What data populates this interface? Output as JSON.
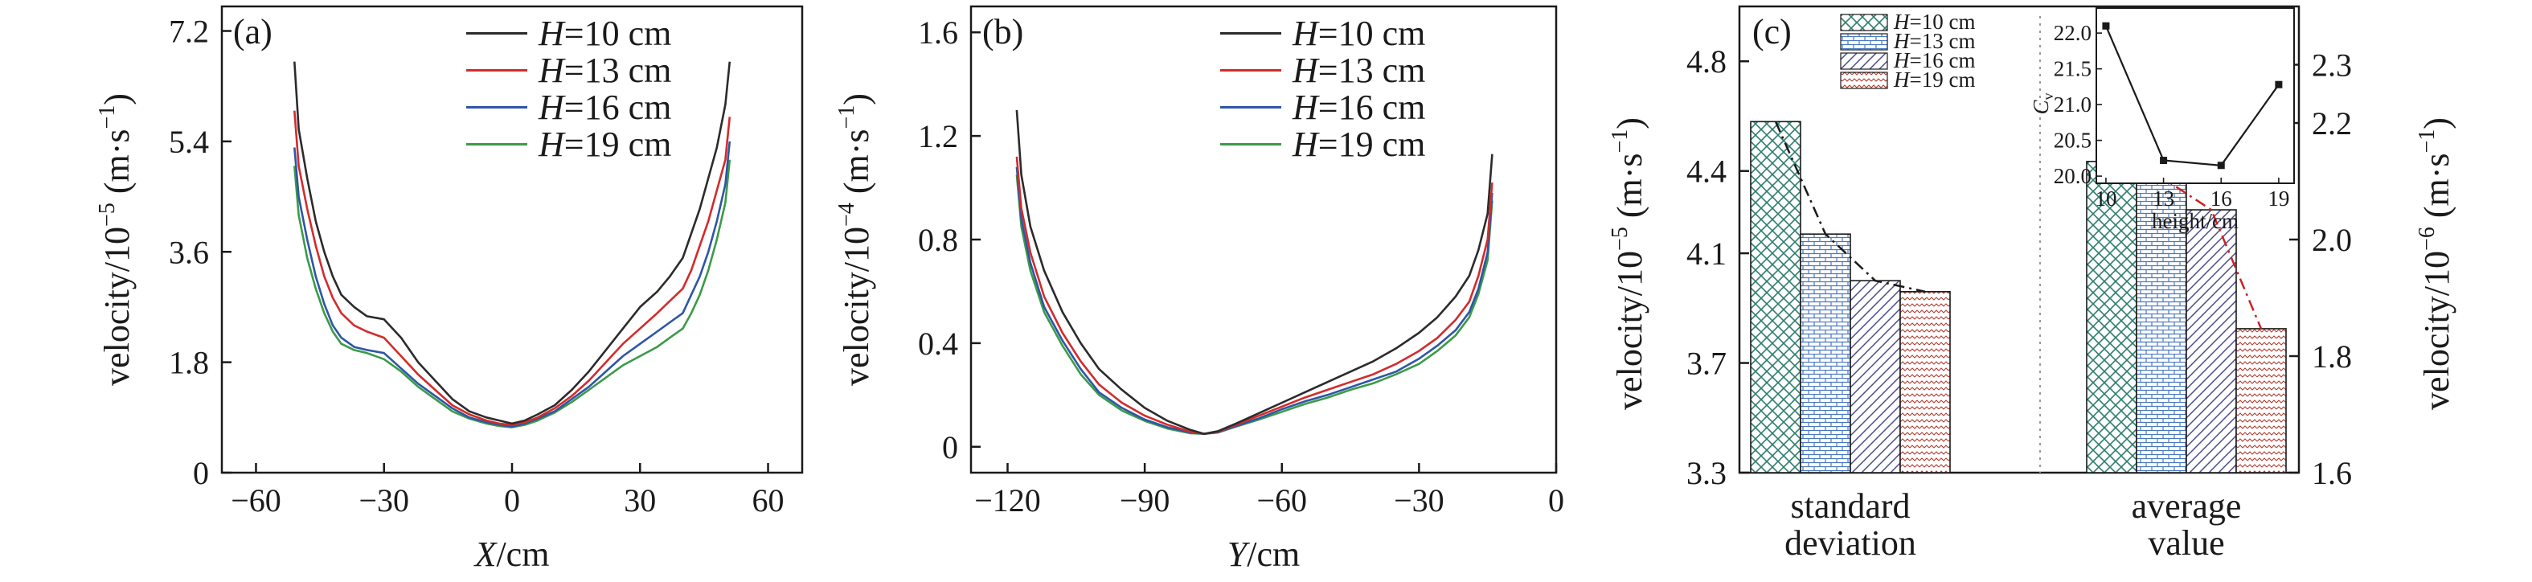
{
  "chart_data": [
    {
      "panel": "(a)",
      "type": "line",
      "xlabel_var": "X",
      "xlabel_unit": "/cm",
      "ylabel": "velocity/10",
      "ylabel_exp": "−5",
      "ylabel_unit": " (m·s",
      "ylabel_unit_exp": "−1",
      "ylabel_close": ")",
      "xlim": [
        -68,
        68
      ],
      "ylim": [
        0,
        7.6
      ],
      "xticks": [
        -60,
        -30,
        0,
        30,
        60
      ],
      "yticks": [
        0,
        1.8,
        3.6,
        5.4,
        7.2
      ],
      "xtick_labels": [
        "−60",
        "−30",
        "0",
        "30",
        "60"
      ],
      "ytick_labels": [
        "0",
        "1.8",
        "3.6",
        "5.4",
        "7.2"
      ],
      "legend": {
        "var": "H",
        "entries": [
          "=10 cm",
          "=13 cm",
          "=16 cm",
          "=19 cm"
        ],
        "placement": "top-right"
      },
      "series": [
        {
          "name": "H=10 cm",
          "color": "#2b2b2b",
          "x": [
            -51,
            -50,
            -48,
            -46,
            -44,
            -42,
            -40,
            -37,
            -34,
            -30,
            -26,
            -22,
            -18,
            -14,
            -10,
            -6,
            -3,
            0,
            3,
            6,
            10,
            14,
            18,
            22,
            26,
            30,
            34,
            37,
            40,
            42,
            44,
            46,
            48,
            50,
            51
          ],
          "y": [
            6.7,
            5.6,
            4.8,
            4.1,
            3.6,
            3.2,
            2.9,
            2.7,
            2.55,
            2.5,
            2.2,
            1.8,
            1.5,
            1.2,
            1.0,
            0.9,
            0.85,
            0.8,
            0.85,
            0.95,
            1.1,
            1.35,
            1.65,
            2.0,
            2.35,
            2.7,
            2.95,
            3.2,
            3.5,
            3.9,
            4.3,
            4.8,
            5.3,
            6.0,
            6.7
          ]
        },
        {
          "name": "H=13 cm",
          "color": "#d42b2b",
          "x": [
            -51,
            -50,
            -48,
            -46,
            -44,
            -42,
            -40,
            -37,
            -34,
            -30,
            -26,
            -22,
            -18,
            -14,
            -10,
            -6,
            -3,
            0,
            3,
            6,
            10,
            14,
            18,
            22,
            26,
            30,
            34,
            37,
            40,
            42,
            44,
            46,
            48,
            50,
            51
          ],
          "y": [
            5.9,
            5.0,
            4.3,
            3.7,
            3.2,
            2.85,
            2.6,
            2.4,
            2.3,
            2.2,
            1.9,
            1.6,
            1.35,
            1.1,
            0.95,
            0.85,
            0.8,
            0.78,
            0.82,
            0.9,
            1.05,
            1.25,
            1.5,
            1.8,
            2.1,
            2.35,
            2.6,
            2.8,
            3.0,
            3.3,
            3.7,
            4.1,
            4.6,
            5.1,
            5.8
          ]
        },
        {
          "name": "H=16 cm",
          "color": "#2e56a6",
          "x": [
            -51,
            -50,
            -48,
            -46,
            -44,
            -42,
            -40,
            -37,
            -34,
            -30,
            -26,
            -22,
            -18,
            -14,
            -10,
            -6,
            -3,
            0,
            3,
            6,
            10,
            14,
            18,
            22,
            26,
            30,
            34,
            37,
            40,
            42,
            44,
            46,
            48,
            50,
            51
          ],
          "y": [
            5.3,
            4.5,
            3.8,
            3.2,
            2.75,
            2.4,
            2.2,
            2.05,
            2.0,
            1.95,
            1.7,
            1.45,
            1.25,
            1.05,
            0.9,
            0.82,
            0.78,
            0.75,
            0.8,
            0.88,
            1.0,
            1.2,
            1.4,
            1.65,
            1.9,
            2.1,
            2.3,
            2.45,
            2.6,
            2.9,
            3.2,
            3.6,
            4.1,
            4.7,
            5.4
          ]
        },
        {
          "name": "H=19 cm",
          "color": "#3c9a48",
          "x": [
            -51,
            -50,
            -48,
            -46,
            -44,
            -42,
            -40,
            -37,
            -34,
            -30,
            -26,
            -22,
            -18,
            -14,
            -10,
            -6,
            -3,
            0,
            3,
            6,
            10,
            14,
            18,
            22,
            26,
            30,
            34,
            37,
            40,
            42,
            44,
            46,
            48,
            50,
            51
          ],
          "y": [
            5.0,
            4.2,
            3.5,
            3.0,
            2.6,
            2.3,
            2.1,
            2.0,
            1.95,
            1.85,
            1.65,
            1.4,
            1.2,
            1.0,
            0.88,
            0.8,
            0.76,
            0.74,
            0.78,
            0.85,
            0.98,
            1.15,
            1.35,
            1.55,
            1.75,
            1.9,
            2.05,
            2.2,
            2.35,
            2.6,
            2.9,
            3.3,
            3.8,
            4.4,
            5.1
          ]
        }
      ]
    },
    {
      "panel": "(b)",
      "type": "line",
      "xlabel_var": "Y",
      "xlabel_unit": "/cm",
      "ylabel": "velocity/10",
      "ylabel_exp": "−4",
      "ylabel_unit": " (m·s",
      "ylabel_unit_exp": "−1",
      "ylabel_close": ")",
      "xlim": [
        -128,
        0
      ],
      "ylim": [
        -0.1,
        1.7
      ],
      "xticks": [
        -120,
        -90,
        -60,
        -30,
        0
      ],
      "yticks": [
        0,
        0.4,
        0.8,
        1.2,
        1.6
      ],
      "xtick_labels": [
        "−120",
        "−90",
        "−60",
        "−30",
        "0"
      ],
      "ytick_labels": [
        "0",
        "0.4",
        "0.8",
        "1.2",
        "1.6"
      ],
      "legend": {
        "var": "H",
        "entries": [
          "=10 cm",
          "=13 cm",
          "=16 cm",
          "=19 cm"
        ],
        "placement": "top-right"
      },
      "series": [
        {
          "name": "H=10 cm",
          "color": "#2b2b2b",
          "x": [
            -118,
            -117,
            -115,
            -112,
            -108,
            -104,
            -100,
            -95,
            -90,
            -85,
            -80,
            -77,
            -74,
            -70,
            -65,
            -60,
            -55,
            -50,
            -45,
            -40,
            -35,
            -30,
            -26,
            -22,
            -19,
            -17,
            -15,
            -14
          ],
          "y": [
            1.3,
            1.05,
            0.85,
            0.68,
            0.52,
            0.4,
            0.3,
            0.22,
            0.15,
            0.1,
            0.065,
            0.05,
            0.06,
            0.09,
            0.13,
            0.17,
            0.21,
            0.25,
            0.29,
            0.33,
            0.38,
            0.44,
            0.5,
            0.58,
            0.66,
            0.76,
            0.9,
            1.13
          ]
        },
        {
          "name": "H=13 cm",
          "color": "#d42b2b",
          "x": [
            -118,
            -117,
            -115,
            -112,
            -108,
            -104,
            -100,
            -95,
            -90,
            -85,
            -80,
            -77,
            -74,
            -70,
            -65,
            -60,
            -55,
            -50,
            -45,
            -40,
            -35,
            -30,
            -26,
            -22,
            -19,
            -17,
            -15,
            -14
          ],
          "y": [
            1.12,
            0.92,
            0.75,
            0.58,
            0.44,
            0.33,
            0.24,
            0.17,
            0.12,
            0.085,
            0.058,
            0.05,
            0.058,
            0.085,
            0.12,
            0.155,
            0.19,
            0.22,
            0.25,
            0.28,
            0.32,
            0.37,
            0.42,
            0.49,
            0.56,
            0.66,
            0.8,
            1.02
          ]
        },
        {
          "name": "H=16 cm",
          "color": "#2e56a6",
          "x": [
            -118,
            -117,
            -115,
            -112,
            -108,
            -104,
            -100,
            -95,
            -90,
            -85,
            -80,
            -77,
            -74,
            -70,
            -65,
            -60,
            -55,
            -50,
            -45,
            -40,
            -35,
            -30,
            -26,
            -22,
            -19,
            -17,
            -15,
            -14
          ],
          "y": [
            1.08,
            0.88,
            0.71,
            0.54,
            0.41,
            0.3,
            0.21,
            0.15,
            0.105,
            0.075,
            0.055,
            0.05,
            0.056,
            0.08,
            0.11,
            0.145,
            0.175,
            0.2,
            0.23,
            0.26,
            0.29,
            0.34,
            0.39,
            0.45,
            0.52,
            0.61,
            0.75,
            0.98
          ]
        },
        {
          "name": "H=19 cm",
          "color": "#3c9a48",
          "x": [
            -118,
            -117,
            -115,
            -112,
            -108,
            -104,
            -100,
            -95,
            -90,
            -85,
            -80,
            -77,
            -74,
            -70,
            -65,
            -60,
            -55,
            -50,
            -45,
            -40,
            -35,
            -30,
            -26,
            -22,
            -19,
            -17,
            -15,
            -14
          ],
          "y": [
            1.05,
            0.85,
            0.68,
            0.52,
            0.39,
            0.28,
            0.2,
            0.14,
            0.1,
            0.07,
            0.052,
            0.05,
            0.055,
            0.078,
            0.105,
            0.135,
            0.165,
            0.19,
            0.22,
            0.245,
            0.28,
            0.32,
            0.37,
            0.43,
            0.5,
            0.59,
            0.72,
            0.95
          ]
        }
      ]
    },
    {
      "panel": "(c)",
      "type": "bar",
      "categories": [
        "standard deviation",
        "average value"
      ],
      "category_lines": [
        [
          "standard",
          "deviation"
        ],
        [
          "average",
          "value"
        ]
      ],
      "ylabel": "velocity/10",
      "ylabel_exp": "−5",
      "ylabel_unit": " (m·s",
      "ylabel_unit_exp": "−1",
      "ylabel_close": ")",
      "ylim": [
        3.3,
        5.0
      ],
      "yticks": [
        3.3,
        3.7,
        4.1,
        4.4,
        4.8
      ],
      "ytick_labels": [
        "3.3",
        "3.7",
        "4.1",
        "4.4",
        "4.8"
      ],
      "ylabel_right": "velocity/10",
      "ylabel_right_exp": "−6",
      "ylabel_right_unit": " (m·s",
      "ylabel_right_unit_exp": "−1",
      "ylabel_right_close": ")",
      "ylim_right": [
        1.6,
        2.4
      ],
      "yticks_right": [
        1.6,
        1.8,
        2.0,
        2.2,
        2.3
      ],
      "ytick_labels_right": [
        "1.6",
        "1.8",
        "2.0",
        "2.2",
        "2.3"
      ],
      "legend": {
        "var": "H",
        "entries": [
          "=10 cm",
          "=13 cm",
          "=16 cm",
          "=19 cm"
        ],
        "placement": "top-left"
      },
      "series": [
        {
          "name": "H=10 cm",
          "pattern": "crosshatch",
          "color": "#2e7d6e",
          "values": [
            4.58,
            2.134
          ]
        },
        {
          "name": "H=13 cm",
          "pattern": "brick",
          "color": "#4a78c0",
          "values": [
            4.17,
            2.107
          ]
        },
        {
          "name": "H=16 cm",
          "pattern": "diagonal",
          "color": "#4a4a8a",
          "values": [
            4.0,
            2.051
          ]
        },
        {
          "name": "H=19 cm",
          "pattern": "zigzag",
          "color": "#b03a2e",
          "values": [
            3.96,
            1.847
          ]
        }
      ],
      "trend_left_color": "#1a1a1a",
      "trend_right_color": "#cc2222",
      "inset": {
        "type": "line",
        "xlabel": "height/cm",
        "ylabel_var": "C",
        "ylabel_sub": "v",
        "x": [
          10,
          13,
          16,
          19
        ],
        "y": [
          22.1,
          20.22,
          20.15,
          21.28
        ],
        "xlim": [
          9.5,
          19.8
        ],
        "ylim": [
          19.9,
          22.35
        ],
        "xticks": [
          10,
          13,
          16,
          19
        ],
        "yticks": [
          20.0,
          20.5,
          21.0,
          21.5,
          22.0
        ],
        "xtick_labels": [
          "10",
          "13",
          "16",
          "19"
        ],
        "ytick_labels": [
          "20.0",
          "20.5",
          "21.0",
          "21.5",
          "22.0"
        ]
      }
    }
  ]
}
